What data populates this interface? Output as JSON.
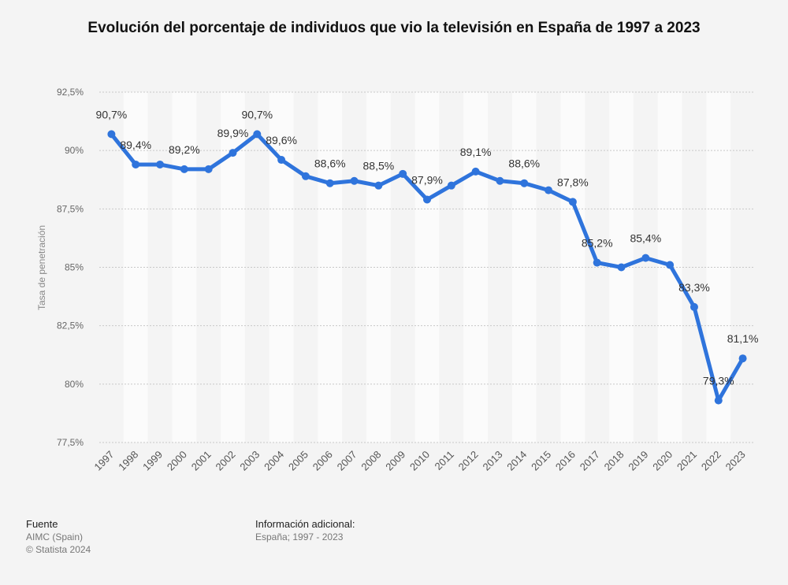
{
  "chart_data": {
    "type": "line",
    "title": "Evolución del porcentaje de individuos que vio la televisión en España de 1997 a 2023",
    "ylabel": "Tasa de penetración",
    "xlabel": "",
    "ylim": [
      77.5,
      92.5
    ],
    "yticks": [
      "77,5%",
      "80%",
      "82,5%",
      "85%",
      "87,5%",
      "90%",
      "92,5%"
    ],
    "ytick_values": [
      77.5,
      80,
      82.5,
      85,
      87.5,
      90,
      92.5
    ],
    "grid": true,
    "legend": "none",
    "series_color": "#2f74dc",
    "categories": [
      "1997",
      "1998",
      "1999",
      "2000",
      "2001",
      "2002",
      "2003",
      "2004",
      "2005",
      "2006",
      "2007",
      "2008",
      "2009",
      "2010",
      "2011",
      "2012",
      "2013",
      "2014",
      "2015",
      "2016",
      "2017",
      "2018",
      "2019",
      "2020",
      "2021",
      "2022",
      "2023"
    ],
    "values": [
      90.7,
      89.4,
      89.4,
      89.2,
      89.2,
      89.9,
      90.7,
      89.6,
      88.9,
      88.6,
      88.7,
      88.5,
      89.0,
      87.9,
      88.5,
      89.1,
      88.7,
      88.6,
      88.3,
      87.8,
      85.2,
      85.0,
      85.4,
      85.1,
      83.3,
      79.3,
      81.1
    ],
    "data_labels": [
      "90,7%",
      "89,4%",
      "",
      "89,2%",
      "",
      "89,9%",
      "90,7%",
      "89,6%",
      "",
      "88,6%",
      "",
      "88,5%",
      "",
      "87,9%",
      "",
      "89,1%",
      "",
      "88,6%",
      "",
      "87,8%",
      "85,2%",
      "",
      "85,4%",
      "",
      "83,3%",
      "79,3%",
      "81,1%"
    ]
  },
  "footer": {
    "source_heading": "Fuente",
    "source_line1": "AIMC (Spain)",
    "source_line2": "© Statista 2024",
    "info_heading": "Información adicional:",
    "info_line": "España; 1997 - 2023"
  }
}
